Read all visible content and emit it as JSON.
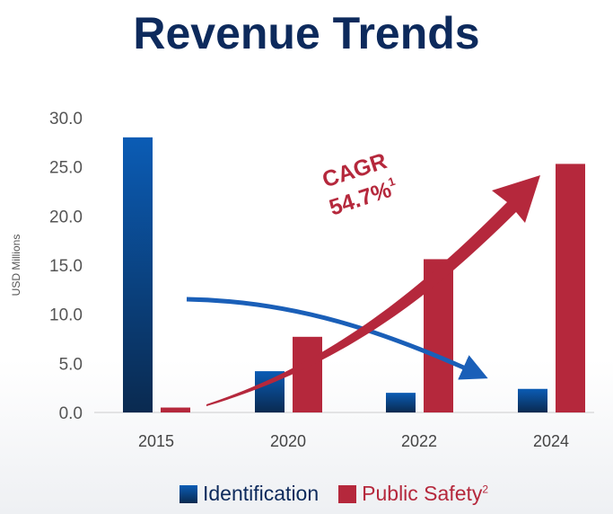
{
  "chart_data": {
    "type": "bar",
    "title": "Revenue Trends",
    "xlabel": "",
    "ylabel": "USD Millions",
    "ylim": [
      0,
      30
    ],
    "yticks": [
      "0.0",
      "5.0",
      "10.0",
      "15.0",
      "20.0",
      "25.0",
      "30.0"
    ],
    "categories": [
      "2015",
      "2020",
      "2022",
      "2024"
    ],
    "series": [
      {
        "name": "Identification",
        "color": "#0b5cb5",
        "values": [
          28.0,
          4.2,
          2.0,
          2.4
        ]
      },
      {
        "name": "Public Safety",
        "superscript": "2",
        "color": "#b5283c",
        "values": [
          0.5,
          7.7,
          15.6,
          25.3
        ]
      }
    ],
    "annotations": {
      "cagr_label": "CAGR",
      "cagr_value": "54.7%",
      "cagr_footnote": "1"
    },
    "legend_position": "bottom",
    "grid": false
  }
}
